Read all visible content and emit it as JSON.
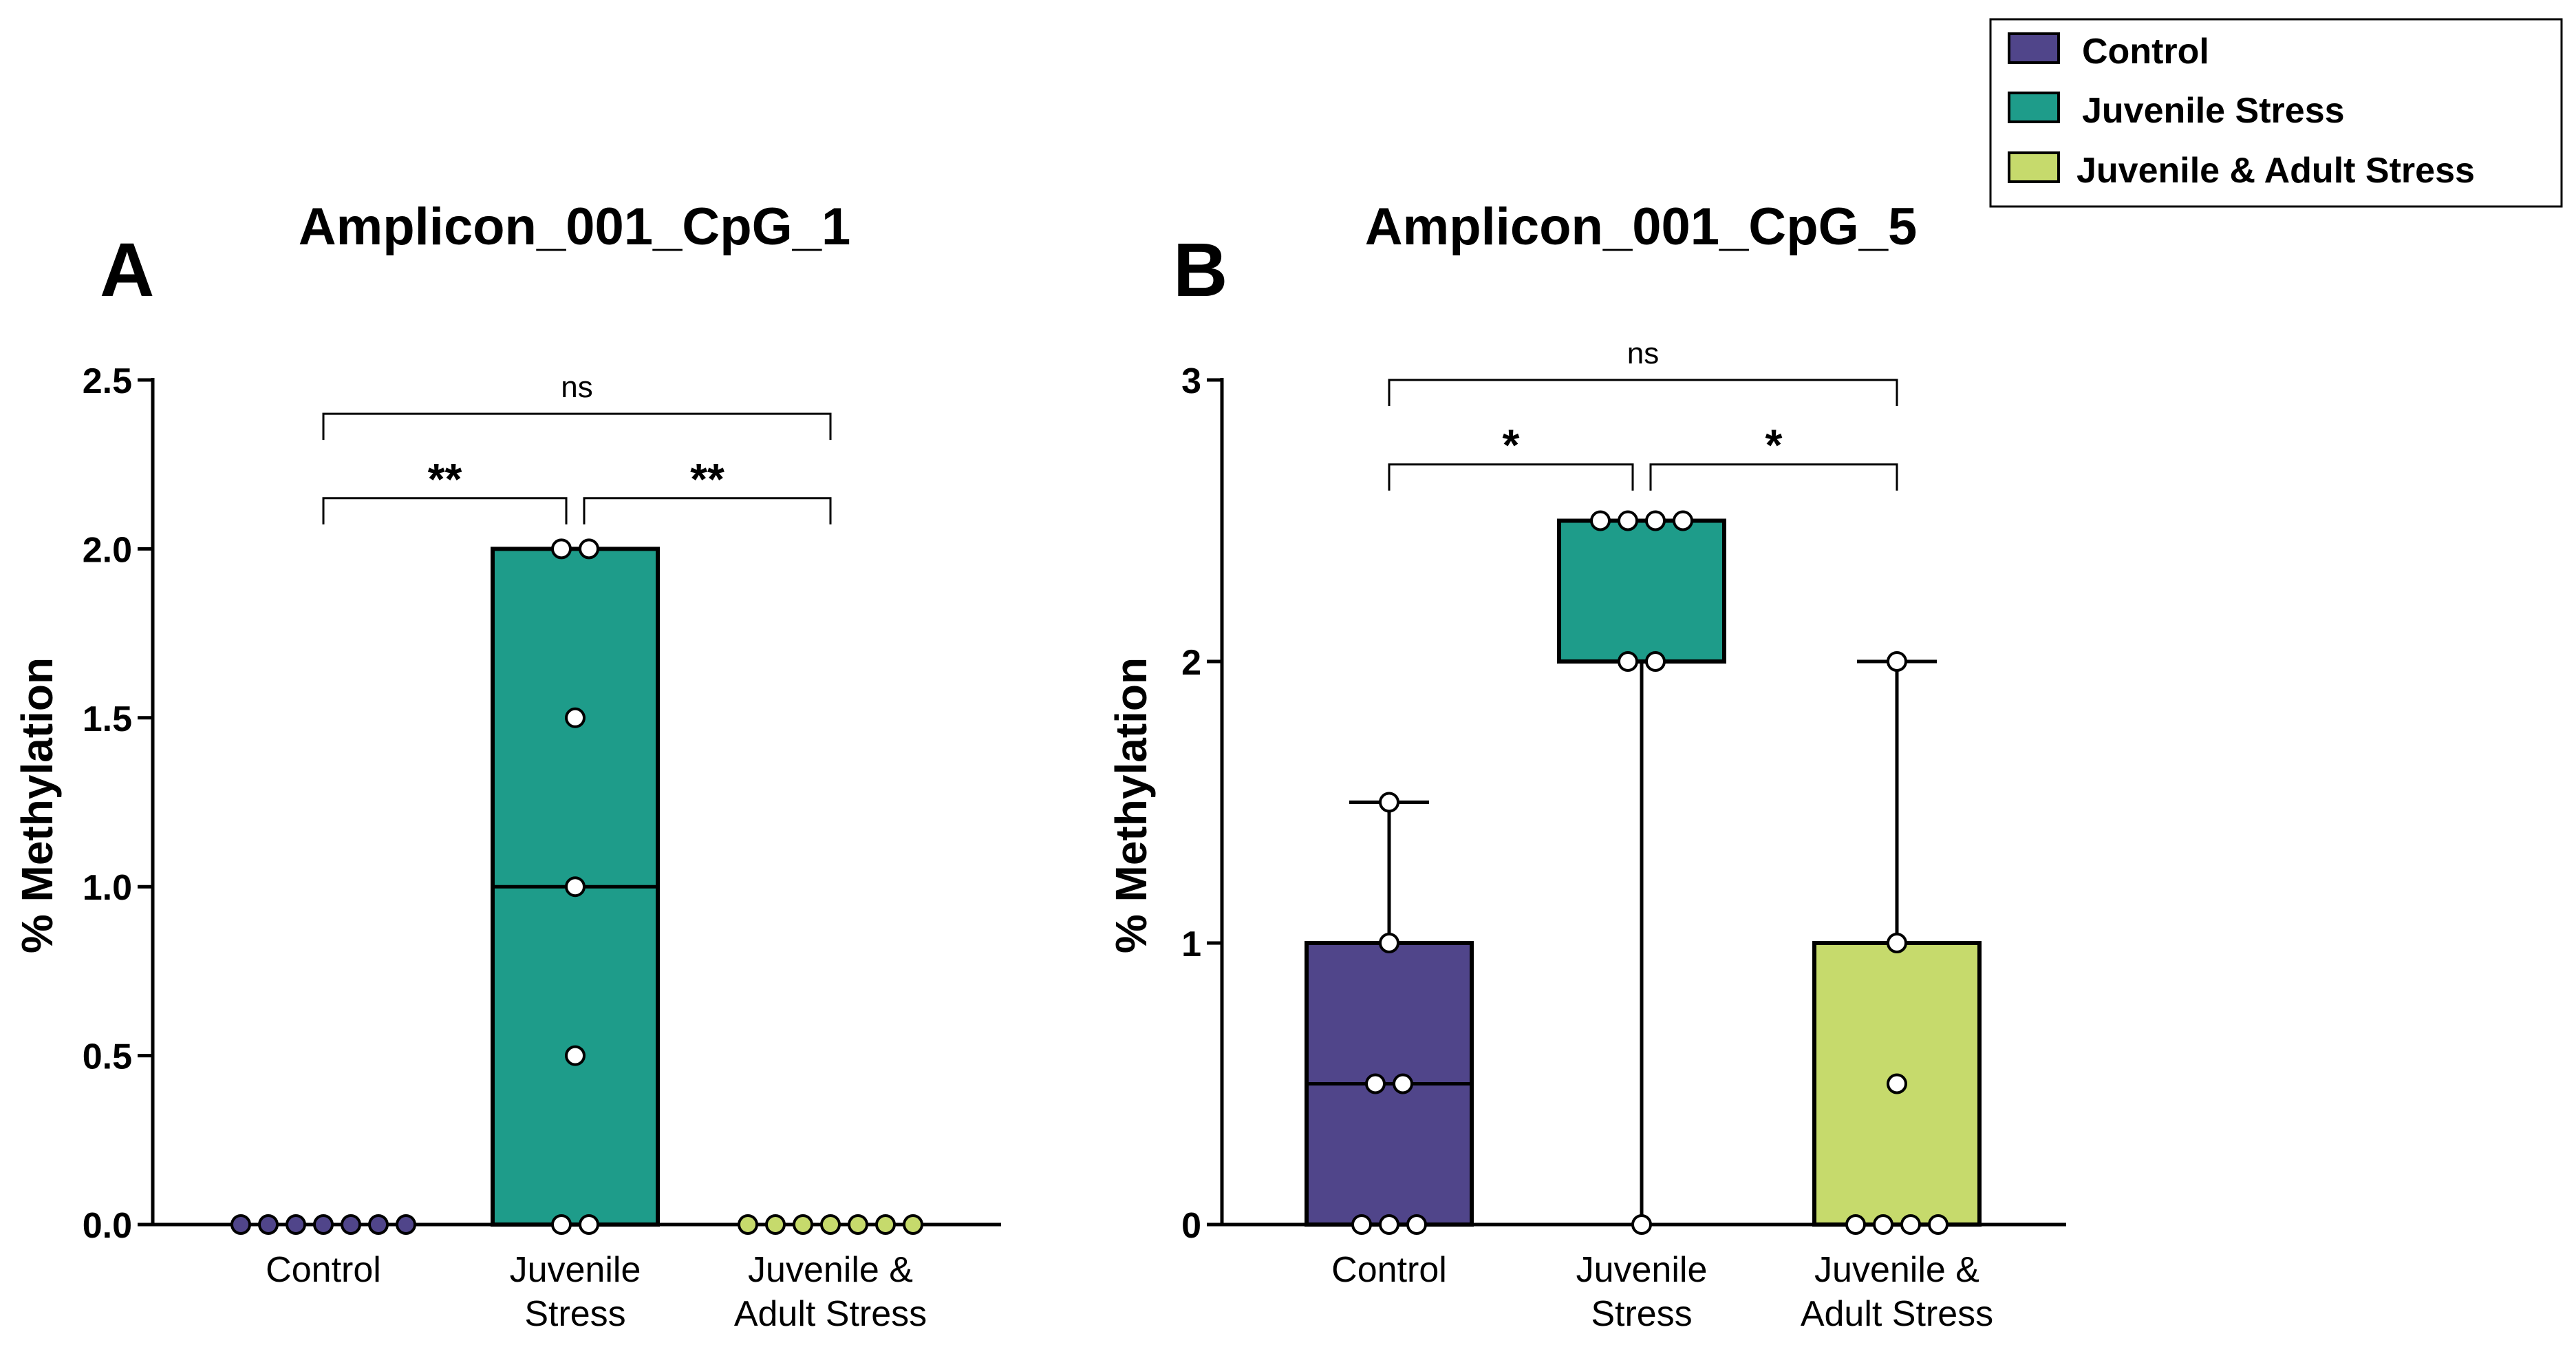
{
  "chart_data": [
    {
      "type": "box",
      "panel_label": "A",
      "title": "Amplicon_001_CpG_1",
      "xlabel": "",
      "ylabel": "% Methylation",
      "ylim": [
        0,
        2.5
      ],
      "yticks": [
        0.0,
        0.5,
        1.0,
        1.5,
        2.0,
        2.5
      ],
      "ytick_labels": [
        "0.0",
        "0.5",
        "1.0",
        "1.5",
        "2.0",
        "2.5"
      ],
      "categories": [
        {
          "lines": [
            "Control"
          ]
        },
        {
          "lines": [
            "Juvenile",
            "Stress"
          ]
        },
        {
          "lines": [
            "Juvenile &",
            "Adult Stress"
          ]
        }
      ],
      "groups": [
        {
          "name": "Control",
          "q1": 0,
          "median": 0,
          "q3": 0,
          "min": 0,
          "max": 0,
          "points": [
            0,
            0,
            0,
            0,
            0,
            0,
            0
          ]
        },
        {
          "name": "Juvenile Stress",
          "q1": 0,
          "median": 1.0,
          "q3": 2.0,
          "min": 0,
          "max": 2.0,
          "points": [
            2.0,
            2.0,
            1.5,
            1.0,
            0.5,
            0,
            0
          ]
        },
        {
          "name": "Juvenile & Adult Stress",
          "q1": 0,
          "median": 0,
          "q3": 0,
          "min": 0,
          "max": 0,
          "points": [
            0,
            0,
            0,
            0,
            0,
            0,
            0
          ]
        }
      ],
      "comparisons": [
        {
          "from": 0,
          "to": 1,
          "label": "**",
          "y": 2.15
        },
        {
          "from": 1,
          "to": 2,
          "label": "**",
          "y": 2.15
        },
        {
          "from": 0,
          "to": 2,
          "label": "ns",
          "y": 2.4
        }
      ]
    },
    {
      "type": "box",
      "panel_label": "B",
      "title": "Amplicon_001_CpG_5",
      "xlabel": "",
      "ylabel": "% Methylation",
      "ylim": [
        0,
        3
      ],
      "yticks": [
        0,
        1,
        2,
        3
      ],
      "ytick_labels": [
        "0",
        "1",
        "2",
        "3"
      ],
      "categories": [
        {
          "lines": [
            "Control"
          ]
        },
        {
          "lines": [
            "Juvenile",
            "Stress"
          ]
        },
        {
          "lines": [
            "Juvenile &",
            "Adult Stress"
          ]
        }
      ],
      "groups": [
        {
          "name": "Control",
          "q1": 0,
          "median": 0.5,
          "q3": 1.0,
          "min": 0,
          "max": 1.5,
          "points": [
            1.5,
            1.0,
            0.5,
            0.5,
            0,
            0,
            0
          ]
        },
        {
          "name": "Juvenile Stress",
          "q1": 2.0,
          "median": 2.5,
          "q3": 2.5,
          "min": 0,
          "max": 2.5,
          "points": [
            2.5,
            2.5,
            2.5,
            2.5,
            2.0,
            2.0,
            0
          ]
        },
        {
          "name": "Juvenile & Adult Stress",
          "q1": 0,
          "median": 0,
          "q3": 1.0,
          "min": 0,
          "max": 2.0,
          "points": [
            2.0,
            1.0,
            0.5,
            0,
            0,
            0,
            0
          ]
        }
      ],
      "comparisons": [
        {
          "from": 0,
          "to": 1,
          "label": "*",
          "y": 2.7
        },
        {
          "from": 1,
          "to": 2,
          "label": "*",
          "y": 2.7
        },
        {
          "from": 0,
          "to": 2,
          "label": "ns",
          "y": 3.0
        }
      ]
    }
  ],
  "legend": {
    "position": "top-right",
    "items": [
      {
        "label": "Control",
        "color": "#50458a"
      },
      {
        "label": "Juvenile Stress",
        "color": "#1e9c8a"
      },
      {
        "label": "Juvenile & Adult Stress",
        "color": "#c6da6c"
      }
    ]
  }
}
